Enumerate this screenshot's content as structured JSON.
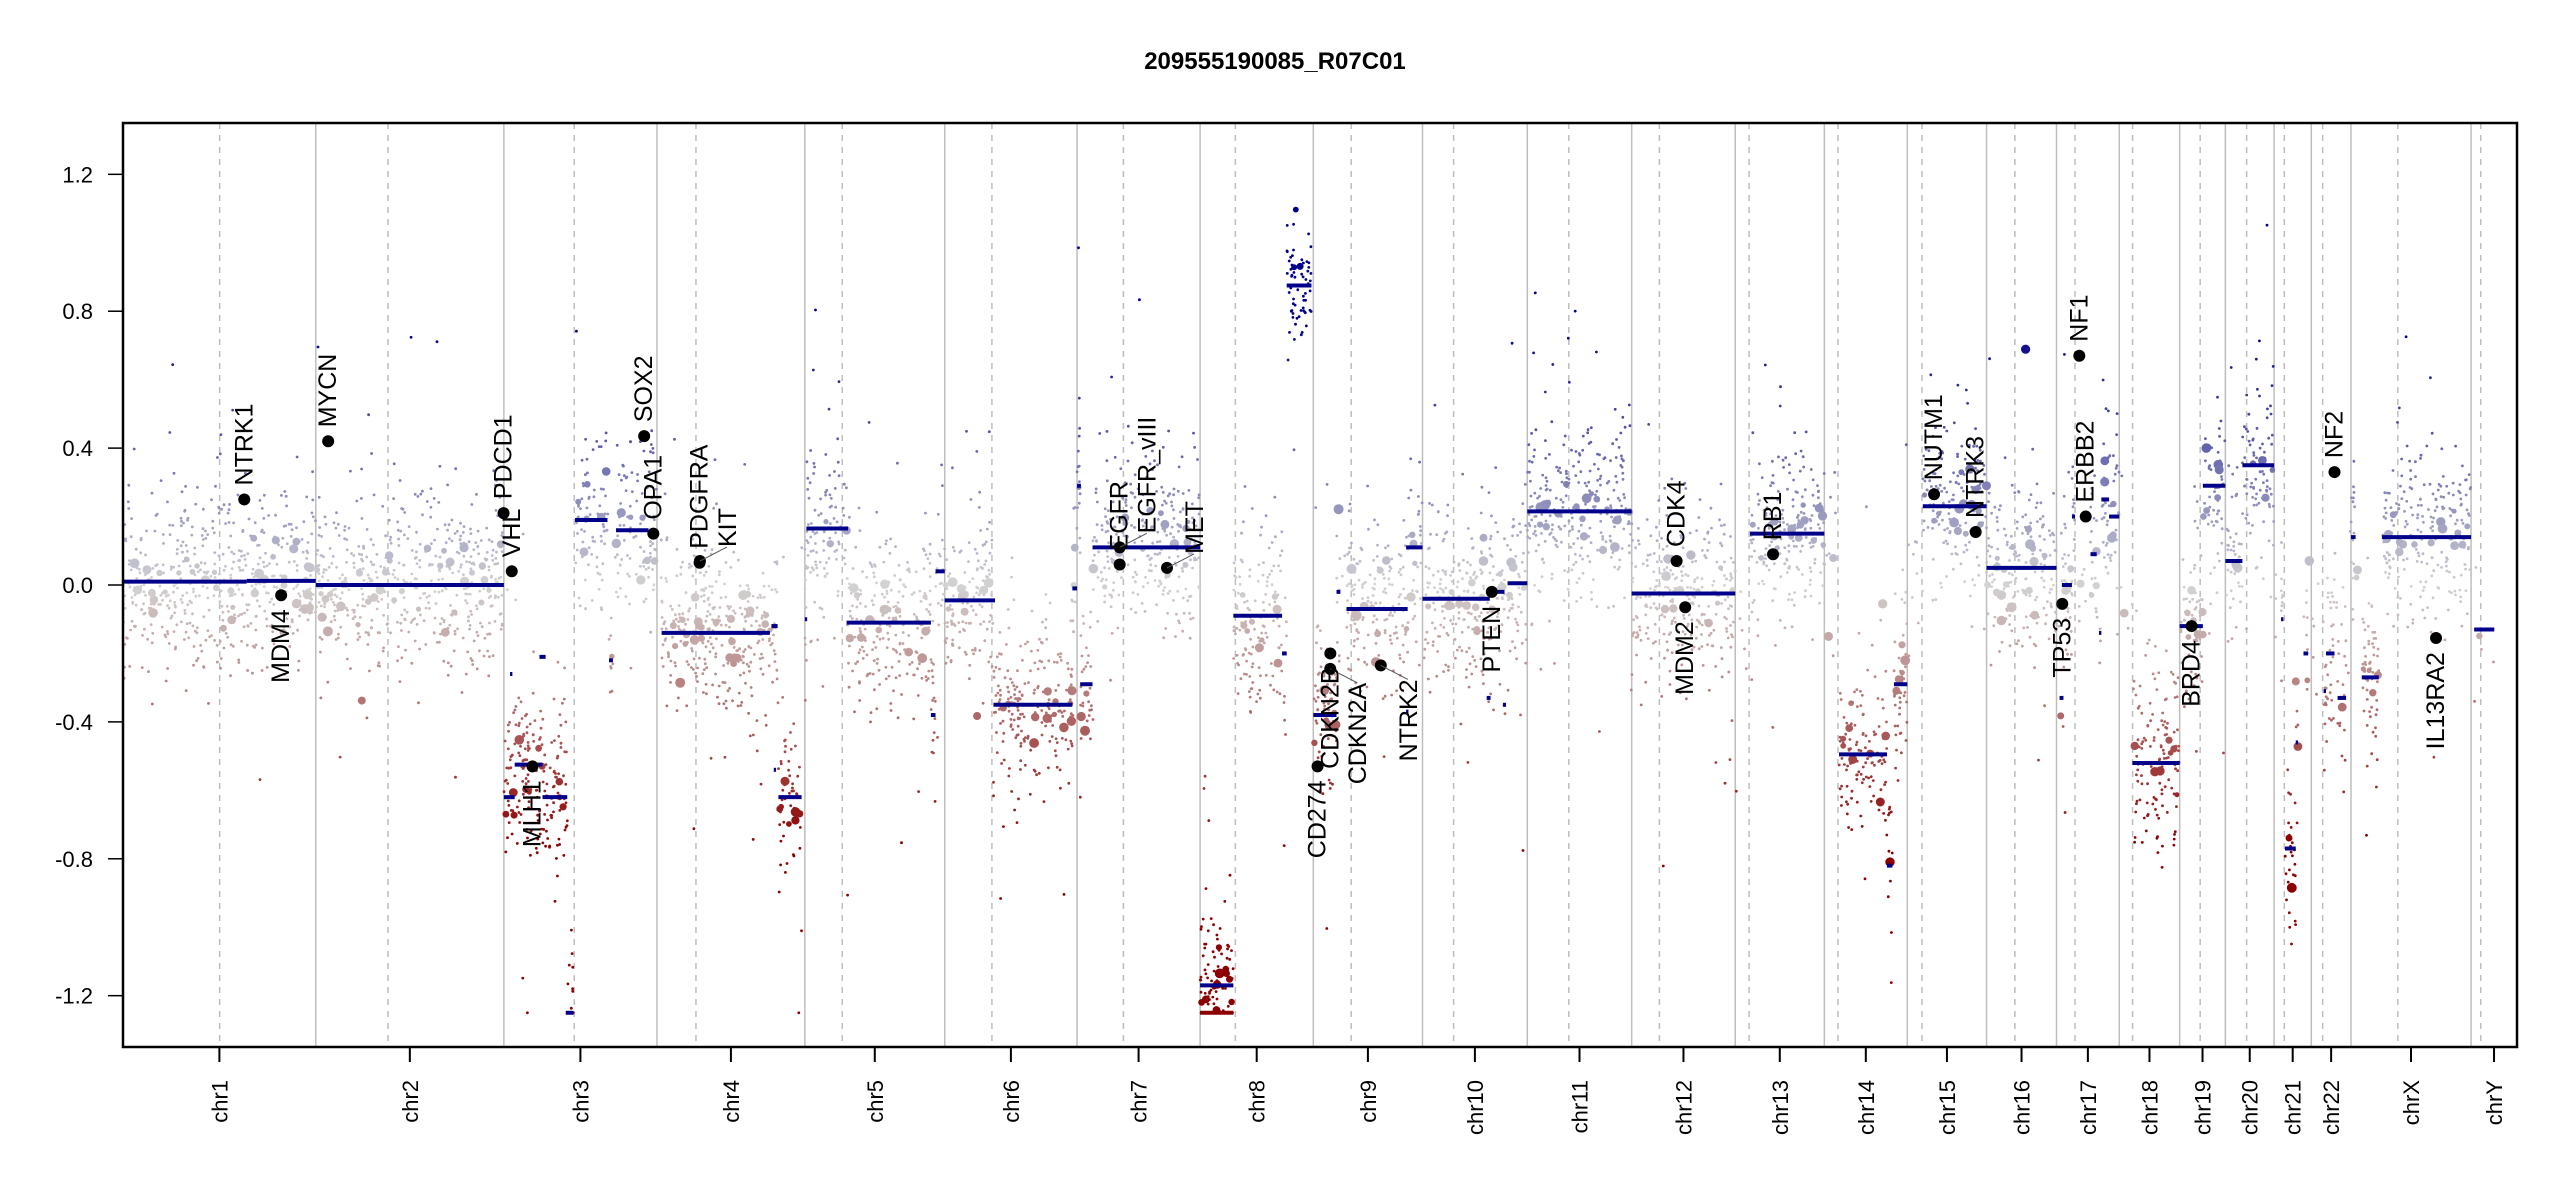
{
  "chart_data": {
    "type": "scatter",
    "title": "209555190085_R07C01",
    "xlabel": "",
    "ylabel": "",
    "ylim": [
      -1.35,
      1.35
    ],
    "yticks": [
      -1.2,
      -0.8,
      -0.4,
      0.0,
      0.4,
      0.8,
      1.2
    ],
    "ytick_labels": [
      "-1.2",
      "-0.8",
      "-0.4",
      "0.0",
      "0.4",
      "0.8",
      "1.2"
    ],
    "x_unit": "Mb",
    "grid": false,
    "colors": {
      "gain": "#00008B",
      "neutral": "#D3D3D3",
      "loss": "#8B0000",
      "segment": "#00008B",
      "clipped_segment": "#8B0000",
      "gene_marker": "#000000",
      "chromosome_border": "#BEBEBE",
      "centromere": "#BEBEBE"
    },
    "chromosomes": [
      {
        "name": "chr1",
        "length": 249.3,
        "centromere": 125.0
      },
      {
        "name": "chr2",
        "length": 243.2,
        "centromere": 93.3
      },
      {
        "name": "chr3",
        "length": 198.0,
        "centromere": 91.0
      },
      {
        "name": "chr4",
        "length": 191.2,
        "centromere": 50.4
      },
      {
        "name": "chr5",
        "length": 180.9,
        "centromere": 48.4
      },
      {
        "name": "chr6",
        "length": 171.1,
        "centromere": 61.0
      },
      {
        "name": "chr7",
        "length": 159.1,
        "centromere": 59.9
      },
      {
        "name": "chr8",
        "length": 146.4,
        "centromere": 45.6
      },
      {
        "name": "chr9",
        "length": 141.2,
        "centromere": 49.0
      },
      {
        "name": "chr10",
        "length": 135.5,
        "centromere": 40.2
      },
      {
        "name": "chr11",
        "length": 135.0,
        "centromere": 53.7
      },
      {
        "name": "chr12",
        "length": 133.9,
        "centromere": 35.8
      },
      {
        "name": "chr13",
        "length": 115.2,
        "centromere": 17.9
      },
      {
        "name": "chr14",
        "length": 107.3,
        "centromere": 17.6
      },
      {
        "name": "chr15",
        "length": 102.5,
        "centromere": 19.0
      },
      {
        "name": "chr16",
        "length": 90.4,
        "centromere": 36.6
      },
      {
        "name": "chr17",
        "length": 81.2,
        "centromere": 24.0
      },
      {
        "name": "chr18",
        "length": 78.1,
        "centromere": 17.2
      },
      {
        "name": "chr19",
        "length": 59.1,
        "centromere": 26.5
      },
      {
        "name": "chr20",
        "length": 63.0,
        "centromere": 27.5
      },
      {
        "name": "chr21",
        "length": 48.1,
        "centromere": 13.2
      },
      {
        "name": "chr22",
        "length": 51.3,
        "centromere": 14.7
      },
      {
        "name": "chrX",
        "length": 155.3,
        "centromere": 60.6
      },
      {
        "name": "chrY",
        "length": 59.4,
        "centromere": 12.5
      }
    ],
    "segments": [
      {
        "chr": "chr1",
        "start": 0,
        "end": 160,
        "value": 0.01
      },
      {
        "chr": "chr1",
        "start": 160,
        "end": 249.3,
        "value": 0.012
      },
      {
        "chr": "chr2",
        "start": 0,
        "end": 243.2,
        "value": 0.0
      },
      {
        "chr": "chr3",
        "start": 0,
        "end": 14,
        "value": -0.62
      },
      {
        "chr": "chr3",
        "start": 8,
        "end": 11,
        "value": -0.26
      },
      {
        "chr": "chr3",
        "start": 14,
        "end": 50,
        "value": -0.525
      },
      {
        "chr": "chr3",
        "start": 46,
        "end": 54,
        "value": -0.21
      },
      {
        "chr": "chr3",
        "start": 50,
        "end": 82,
        "value": -0.62
      },
      {
        "chr": "chr3",
        "start": 80,
        "end": 90,
        "value": -1.25
      },
      {
        "chr": "chr3",
        "start": 92,
        "end": 134,
        "value": 0.19
      },
      {
        "chr": "chr3",
        "start": 136,
        "end": 141,
        "value": -0.22
      },
      {
        "chr": "chr3",
        "start": 145,
        "end": 187,
        "value": 0.16
      },
      {
        "chr": "chr3",
        "start": 187,
        "end": 198,
        "value": 0.15
      },
      {
        "chr": "chr4",
        "start": 6,
        "end": 146,
        "value": -0.14
      },
      {
        "chr": "chr4",
        "start": 148,
        "end": 156,
        "value": -0.12
      },
      {
        "chr": "chr4",
        "start": 151,
        "end": 154,
        "value": -0.54
      },
      {
        "chr": "chr4",
        "start": 157,
        "end": 187,
        "value": -0.62
      },
      {
        "chr": "chr5",
        "start": 0,
        "end": 3,
        "value": -0.1
      },
      {
        "chr": "chr5",
        "start": 2,
        "end": 56,
        "value": 0.165
      },
      {
        "chr": "chr5",
        "start": 54,
        "end": 163,
        "value": -0.11
      },
      {
        "chr": "chr5",
        "start": 163,
        "end": 169,
        "value": -0.38
      },
      {
        "chr": "chr5",
        "start": 169,
        "end": 180.9,
        "value": 0.04
      },
      {
        "chr": "chr6",
        "start": 0,
        "end": 65,
        "value": -0.045
      },
      {
        "chr": "chr6",
        "start": 63,
        "end": 165,
        "value": -0.35
      },
      {
        "chr": "chr6",
        "start": 165,
        "end": 171.1,
        "value": -0.01
      },
      {
        "chr": "chr7",
        "start": 0,
        "end": 5,
        "value": 0.29
      },
      {
        "chr": "chr7",
        "start": 4,
        "end": 20,
        "value": -0.29
      },
      {
        "chr": "chr7",
        "start": 20,
        "end": 159.1,
        "value": 0.11
      },
      {
        "chr": "chr8",
        "start": 0,
        "end": 43,
        "value": -1.17
      },
      {
        "chr": "chr8",
        "start": 0,
        "end": 43,
        "value": -1.25,
        "clipped": true
      },
      {
        "chr": "chr8",
        "start": 43,
        "end": 106,
        "value": -0.09
      },
      {
        "chr": "chr8",
        "start": 106,
        "end": 112,
        "value": -0.2
      },
      {
        "chr": "chr8",
        "start": 112,
        "end": 144,
        "value": 0.875
      },
      {
        "chr": "chr9",
        "start": 0,
        "end": 30,
        "value": -0.38
      },
      {
        "chr": "chr9",
        "start": 30,
        "end": 35,
        "value": -0.02
      },
      {
        "chr": "chr9",
        "start": 43,
        "end": 122,
        "value": -0.07
      },
      {
        "chr": "chr9",
        "start": 120,
        "end": 123,
        "value": -0.37
      },
      {
        "chr": "chr9",
        "start": 120,
        "end": 141.2,
        "value": 0.11
      },
      {
        "chr": "chr10",
        "start": 0,
        "end": 87,
        "value": -0.04
      },
      {
        "chr": "chr10",
        "start": 83,
        "end": 88,
        "value": -0.33
      },
      {
        "chr": "chr10",
        "start": 87,
        "end": 106,
        "value": -0.02
      },
      {
        "chr": "chr10",
        "start": 104,
        "end": 108,
        "value": -0.35
      },
      {
        "chr": "chr10",
        "start": 110,
        "end": 135.5,
        "value": 0.005
      },
      {
        "chr": "chr11",
        "start": 0,
        "end": 135.0,
        "value": 0.215
      },
      {
        "chr": "chr12",
        "start": 0,
        "end": 133.9,
        "value": -0.025
      },
      {
        "chr": "chr13",
        "start": 19,
        "end": 115.2,
        "value": 0.15
      },
      {
        "chr": "chr14",
        "start": 19,
        "end": 81,
        "value": -0.495
      },
      {
        "chr": "chr14",
        "start": 81,
        "end": 88,
        "value": -0.82
      },
      {
        "chr": "chr14",
        "start": 90,
        "end": 107.3,
        "value": -0.29
      },
      {
        "chr": "chr15",
        "start": 20,
        "end": 102.5,
        "value": 0.23
      },
      {
        "chr": "chr16",
        "start": 0,
        "end": 90.4,
        "value": 0.05
      },
      {
        "chr": "chr17",
        "start": 4,
        "end": 9,
        "value": -0.33
      },
      {
        "chr": "chr17",
        "start": 7,
        "end": 20,
        "value": 0.0
      },
      {
        "chr": "chr17",
        "start": 20,
        "end": 24,
        "value": 0.2
      },
      {
        "chr": "chr17",
        "start": 44,
        "end": 52,
        "value": 0.09
      },
      {
        "chr": "chr17",
        "start": 55,
        "end": 58,
        "value": -0.14
      },
      {
        "chr": "chr17",
        "start": 58,
        "end": 68,
        "value": 0.25
      },
      {
        "chr": "chr17",
        "start": 68,
        "end": 81.2,
        "value": 0.2
      },
      {
        "chr": "chr18",
        "start": 17,
        "end": 78.1,
        "value": -0.52
      },
      {
        "chr": "chr19",
        "start": 0,
        "end": 30,
        "value": -0.12
      },
      {
        "chr": "chr19",
        "start": 30,
        "end": 59.1,
        "value": 0.29
      },
      {
        "chr": "chr20",
        "start": 0,
        "end": 22,
        "value": 0.07
      },
      {
        "chr": "chr20",
        "start": 22,
        "end": 63.0,
        "value": 0.35
      },
      {
        "chr": "chr21",
        "start": 9,
        "end": 12,
        "value": -0.1
      },
      {
        "chr": "chr21",
        "start": 14,
        "end": 28,
        "value": -0.77
      },
      {
        "chr": "chr21",
        "start": 28,
        "end": 31,
        "value": -0.46
      },
      {
        "chr": "chr21",
        "start": 38,
        "end": 44,
        "value": -0.2
      },
      {
        "chr": "chr22",
        "start": 16,
        "end": 19,
        "value": -0.31
      },
      {
        "chr": "chr22",
        "start": 19,
        "end": 30,
        "value": -0.2
      },
      {
        "chr": "chr22",
        "start": 34,
        "end": 45,
        "value": -0.33
      },
      {
        "chr": "chrX",
        "start": 0,
        "end": 6,
        "value": 0.14
      },
      {
        "chr": "chrX",
        "start": 14,
        "end": 36,
        "value": -0.27
      },
      {
        "chr": "chrX",
        "start": 40,
        "end": 155.3,
        "value": 0.14
      },
      {
        "chr": "chrY",
        "start": 4,
        "end": 30,
        "value": -0.13
      }
    ],
    "genes": [
      {
        "name": "NTRK1",
        "chr": "chr1",
        "pos": 156.8,
        "value": 0.25
      },
      {
        "name": "MDM4",
        "chr": "chr1",
        "pos": 204.5,
        "value": -0.03
      },
      {
        "name": "MYCN",
        "chr": "chr2",
        "pos": 16.0,
        "value": 0.42
      },
      {
        "name": "PDCD1",
        "chr": "chr2",
        "pos": 242.8,
        "value": 0.21
      },
      {
        "name": "VHL",
        "chr": "chr3",
        "pos": 10.2,
        "value": 0.04
      },
      {
        "name": "MLH1",
        "chr": "chr3",
        "pos": 37.0,
        "value": -0.53
      },
      {
        "name": "SOX2",
        "chr": "chr3",
        "pos": 181.4,
        "value": 0.435
      },
      {
        "name": "OPA1",
        "chr": "chr3",
        "pos": 193.3,
        "value": 0.15
      },
      {
        "name": "KIT",
        "chr": "chr4",
        "pos": 55.5,
        "value": 0.07
      },
      {
        "name": "PDGFRA",
        "chr": "chr4",
        "pos": 55.1,
        "value": 0.065
      },
      {
        "name": "EGFR",
        "chr": "chr7",
        "pos": 55.1,
        "value": 0.06
      },
      {
        "name": "EGFR_vIII",
        "chr": "chr7",
        "pos": 55.2,
        "value": 0.11
      },
      {
        "name": "MET",
        "chr": "chr7",
        "pos": 116.3,
        "value": 0.05
      },
      {
        "name": "CD274",
        "chr": "chr9",
        "pos": 5.5,
        "value": -0.53
      },
      {
        "name": "CDKN2A",
        "chr": "chr9",
        "pos": 21.9,
        "value": -0.245
      },
      {
        "name": "CDKN2B",
        "chr": "chr9",
        "pos": 22.0,
        "value": -0.2
      },
      {
        "name": "NTRK2",
        "chr": "chr9",
        "pos": 87.3,
        "value": -0.235
      },
      {
        "name": "PTEN",
        "chr": "chr10",
        "pos": 89.6,
        "value": -0.02
      },
      {
        "name": "CDK4",
        "chr": "chr12",
        "pos": 58.1,
        "value": 0.07
      },
      {
        "name": "MDM2",
        "chr": "chr12",
        "pos": 69.2,
        "value": -0.065
      },
      {
        "name": "RB1",
        "chr": "chr13",
        "pos": 48.9,
        "value": 0.09
      },
      {
        "name": "NUTM1",
        "chr": "chr15",
        "pos": 34.6,
        "value": 0.265
      },
      {
        "name": "NTRK3",
        "chr": "chr15",
        "pos": 88.4,
        "value": 0.155
      },
      {
        "name": "TP53",
        "chr": "chr17",
        "pos": 7.5,
        "value": -0.055
      },
      {
        "name": "NF1",
        "chr": "chr17",
        "pos": 29.5,
        "value": 0.67
      },
      {
        "name": "ERBB2",
        "chr": "chr17",
        "pos": 37.8,
        "value": 0.2
      },
      {
        "name": "BRD4",
        "chr": "chr19",
        "pos": 15.4,
        "value": -0.12
      },
      {
        "name": "NF2",
        "chr": "chr22",
        "pos": 30.0,
        "value": 0.33
      },
      {
        "name": "IL13RA2",
        "chr": "chrX",
        "pos": 110.0,
        "value": -0.155
      }
    ]
  }
}
